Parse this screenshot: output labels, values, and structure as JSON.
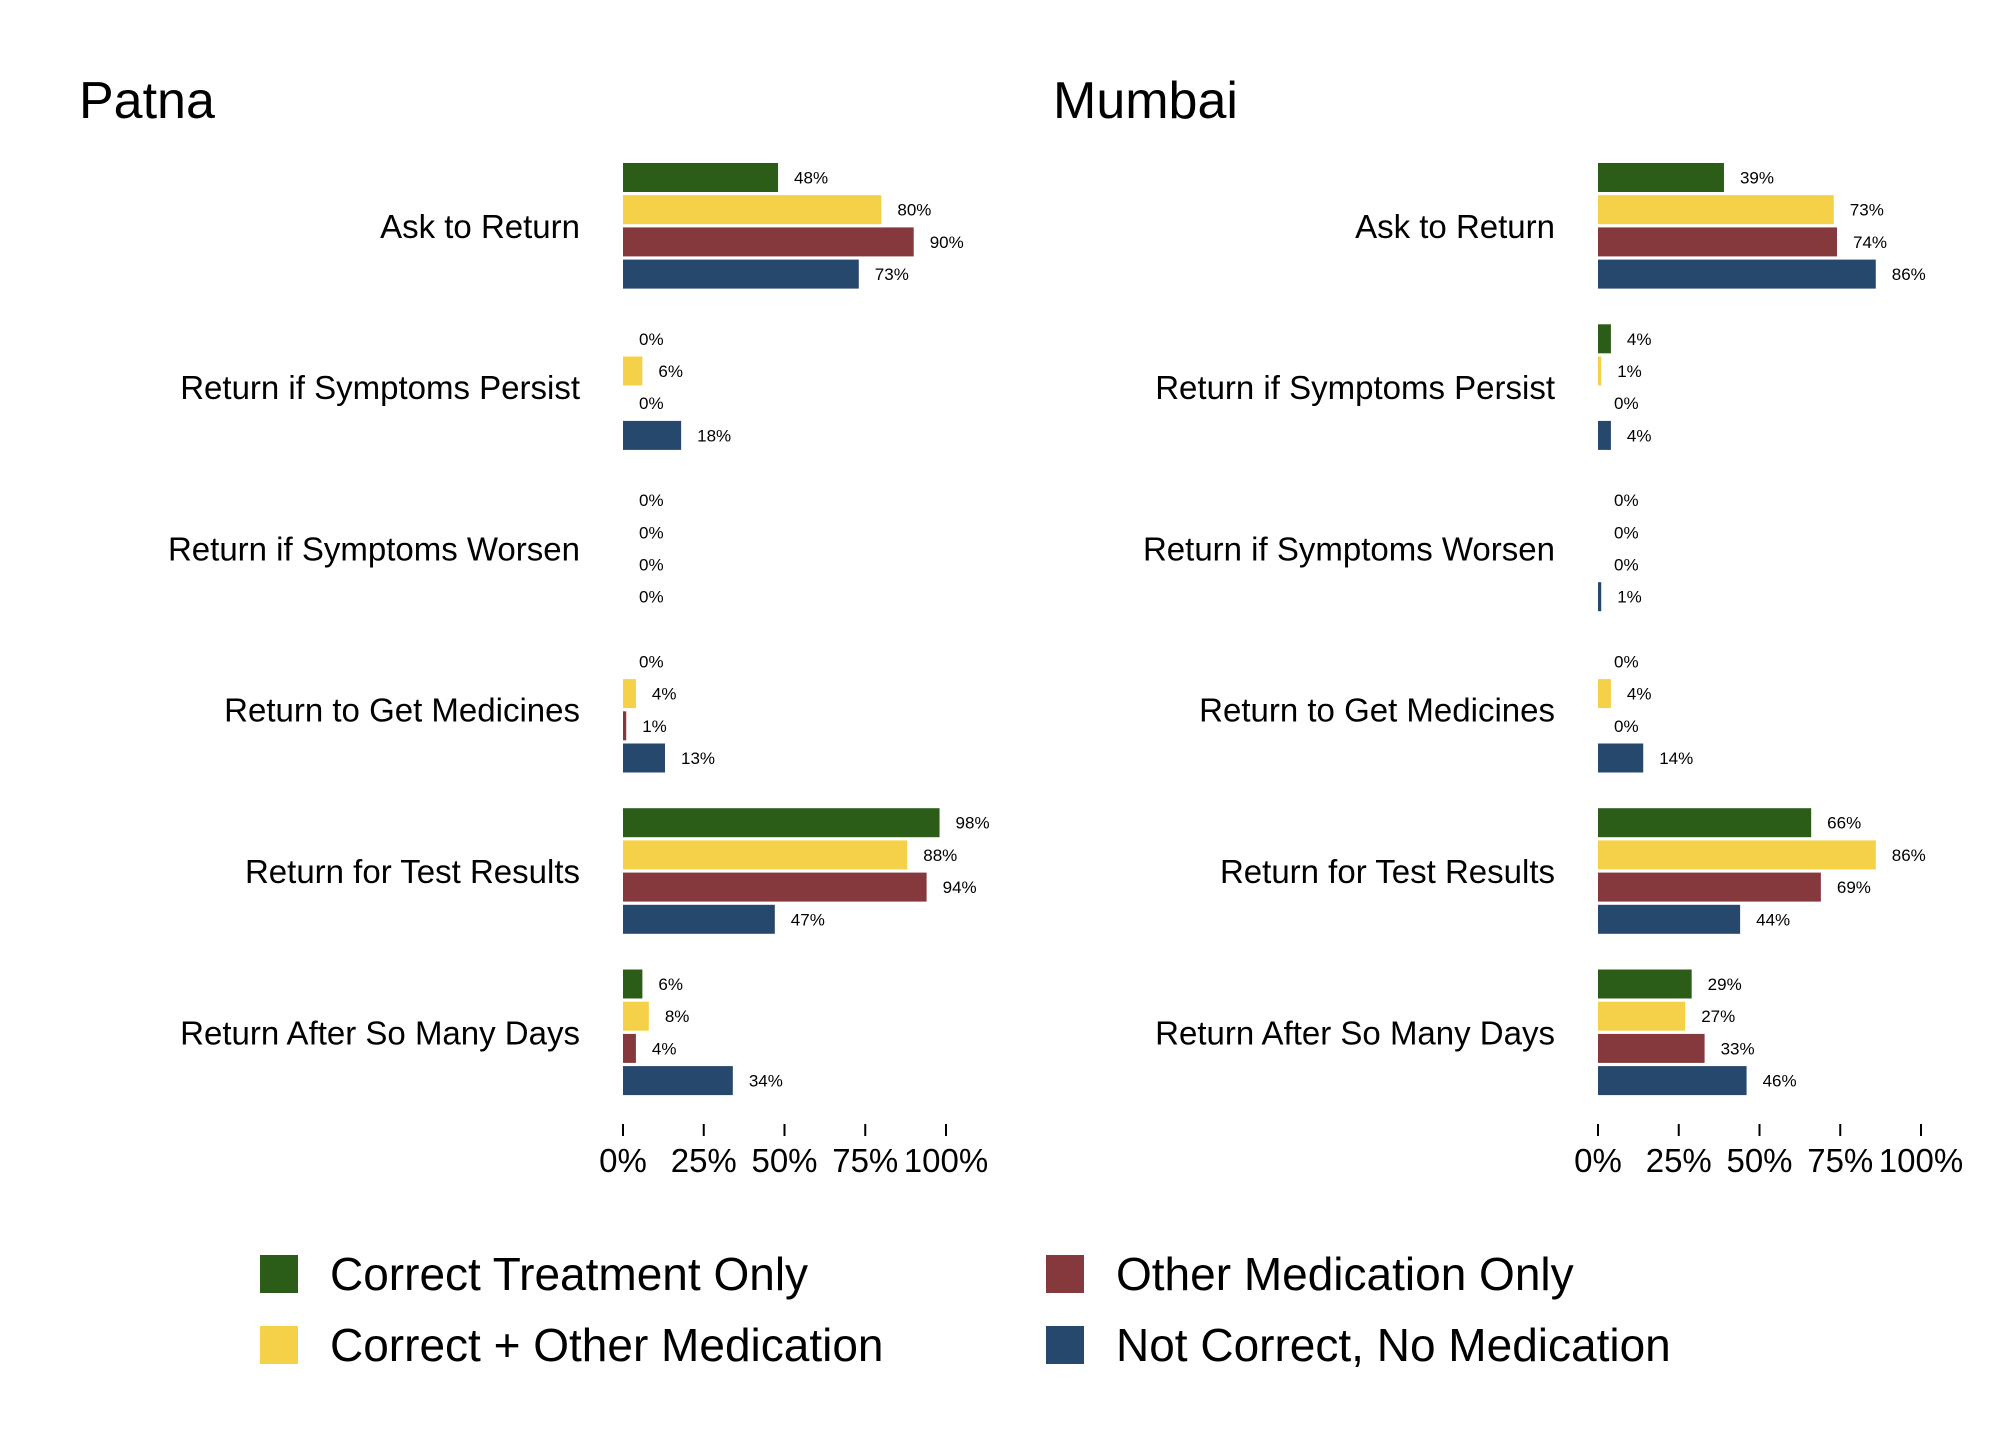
{
  "chart_data": [
    {
      "type": "bar",
      "title": "Patna",
      "orientation": "horizontal",
      "categories": [
        "Ask to Return",
        "Return if Symptoms Persist",
        "Return if Symptoms Worsen",
        "Return to Get Medicines",
        "Return for Test Results",
        "Return After So Many Days"
      ],
      "series": [
        {
          "name": "Correct Treatment Only",
          "color": "#2b5d18",
          "values": [
            48,
            0,
            0,
            0,
            98,
            6
          ]
        },
        {
          "name": "Correct + Other Medication",
          "color": "#f5d14a",
          "values": [
            80,
            6,
            0,
            4,
            88,
            8
          ]
        },
        {
          "name": "Other Medication Only",
          "color": "#86393d",
          "values": [
            90,
            0,
            0,
            1,
            94,
            4
          ]
        },
        {
          "name": "Not Correct, No Medication",
          "color": "#27486d",
          "values": [
            73,
            18,
            0,
            13,
            47,
            34
          ]
        }
      ],
      "xlim": [
        0,
        100
      ],
      "xticks": [
        "0%",
        "25%",
        "50%",
        "75%",
        "100%"
      ],
      "value_suffix": "%",
      "grid": false
    },
    {
      "type": "bar",
      "title": "Mumbai",
      "orientation": "horizontal",
      "categories": [
        "Ask to Return",
        "Return if Symptoms Persist",
        "Return if Symptoms Worsen",
        "Return to Get Medicines",
        "Return for Test Results",
        "Return After So Many Days"
      ],
      "series": [
        {
          "name": "Correct Treatment Only",
          "color": "#2b5d18",
          "values": [
            39,
            4,
            0,
            0,
            66,
            29
          ]
        },
        {
          "name": "Correct + Other Medication",
          "color": "#f5d14a",
          "values": [
            73,
            1,
            0,
            4,
            86,
            27
          ]
        },
        {
          "name": "Other Medication Only",
          "color": "#86393d",
          "values": [
            74,
            0,
            0,
            0,
            69,
            33
          ]
        },
        {
          "name": "Not Correct, No Medication",
          "color": "#27486d",
          "values": [
            86,
            4,
            1,
            14,
            44,
            46
          ]
        }
      ],
      "xlim": [
        0,
        100
      ],
      "xticks": [
        "0%",
        "25%",
        "50%",
        "75%",
        "100%"
      ],
      "value_suffix": "%",
      "grid": false
    }
  ],
  "legend": {
    "placement": "bottom",
    "items": [
      {
        "label": "Correct Treatment Only",
        "color": "#2b5d18"
      },
      {
        "label": "Other Medication Only",
        "color": "#86393d"
      },
      {
        "label": "Correct + Other Medication",
        "color": "#f5d14a"
      },
      {
        "label": "Not Correct, No Medication",
        "color": "#27486d"
      }
    ]
  }
}
